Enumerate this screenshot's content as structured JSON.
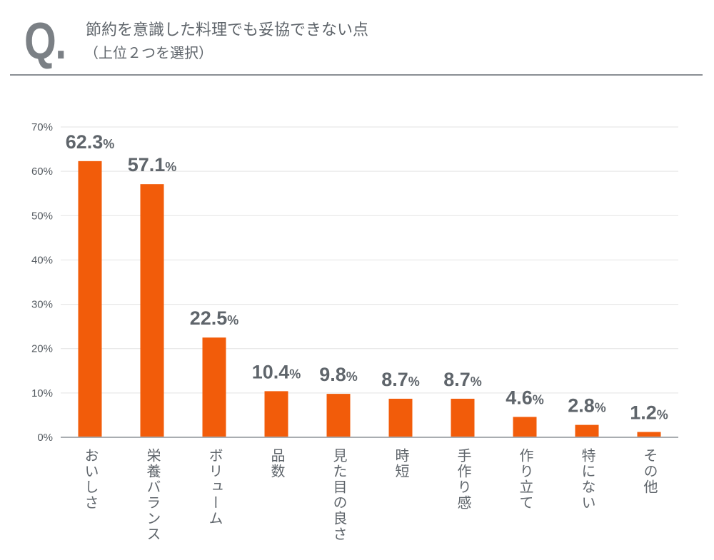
{
  "header": {
    "q_mark": "Q.",
    "title": "節約を意識した料理でも妥協できない点",
    "subtitle": "（上位２つを選択）"
  },
  "chart_data": {
    "type": "bar",
    "categories": [
      "おいしさ",
      "栄養バランス",
      "ボリューム",
      "品数",
      "見た目の良さ",
      "時短",
      "手作り感",
      "作り立て",
      "特にない",
      "その他"
    ],
    "values": [
      62.3,
      57.1,
      22.5,
      10.4,
      9.8,
      8.7,
      8.7,
      4.6,
      2.8,
      1.2
    ],
    "data_labels": [
      "62.3",
      "57.1",
      "22.5",
      "10.4",
      "9.8",
      "8.7",
      "8.7",
      "4.6",
      "2.8",
      "1.2"
    ],
    "unit": "%",
    "ylim": [
      0,
      70
    ],
    "yticks": [
      "0%",
      "10%",
      "20%",
      "30%",
      "40%",
      "50%",
      "60%",
      "70%"
    ],
    "grid": true,
    "bar_color": "#f25c0a",
    "text_color": "#5f656b"
  }
}
